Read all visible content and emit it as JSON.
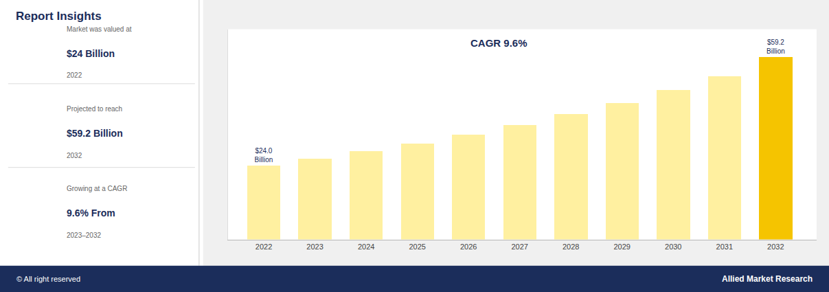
{
  "chart_data": {
    "type": "bar",
    "title": "Report Insights",
    "x": [
      2022,
      2023,
      2024,
      2025,
      2026,
      2027,
      2028,
      2029,
      2030,
      2031,
      2032
    ],
    "values": [
      24.0,
      26.2,
      28.6,
      31.2,
      34.1,
      37.2,
      40.6,
      44.3,
      48.4,
      52.8,
      59.2
    ],
    "value_labels": [
      "$24.0\nBillion",
      null,
      null,
      null,
      null,
      null,
      null,
      null,
      null,
      null,
      "$59.2\nBillion"
    ],
    "data_labels": true,
    "colors": [
      "#FFF0A0",
      "#FFF0A0",
      "#FFF0A0",
      "#FFF0A0",
      "#FFF0A0",
      "#FFF0A0",
      "#FFF0A0",
      "#FFF0A0",
      "#FFF0A0",
      "#FFF0A0",
      "#F5C400"
    ],
    "xlim": [
      2021.3,
      2032.8
    ],
    "xticks": [
      2022,
      2023,
      2024,
      2025,
      2026,
      2027,
      2028,
      2029,
      2030,
      2031,
      2032
    ],
    "ylim": [
      0,
      68
    ],
    "grid": false,
    "tick_labels": "x",
    "annotations": [
      "CAGR 9.6%"
    ],
    "insights": [
      {
        "label": "Market was valued at",
        "value": "$24 Billion",
        "period": "2022"
      },
      {
        "label": "Projected to reach",
        "value": "$59.2 Billion",
        "period": "2032"
      },
      {
        "label": "Growing at a CAGR",
        "value": "9.6% From",
        "period": "2023–2032"
      }
    ],
    "footer": {
      "left": "© All right reserved",
      "right": "Allied Market Research"
    }
  }
}
